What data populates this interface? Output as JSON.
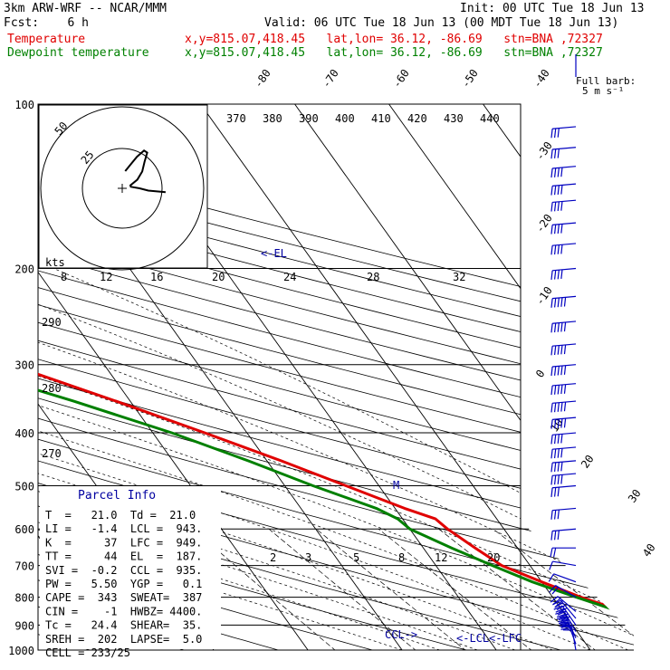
{
  "header": {
    "model": "3km ARW-WRF -- NCAR/MMM",
    "init": "Init: 00 UTC Tue 18 Jun 13",
    "fcst": "Fcst:    6 h",
    "valid": "Valid: 06 UTC Tue 18 Jun 13 (00 MDT Tue 18 Jun 13)",
    "temp_label": "Temperature",
    "dew_label": "Dewpoint temperature",
    "loc_info": "x,y=815.07,418.45   lat,lon= 36.12, -86.69   stn=BNA ,72327"
  },
  "wind_legend": {
    "line1": "Full barb:",
    "line2": "5 m s⁻¹"
  },
  "hodograph": {
    "units": "kts",
    "ring_labels": [
      "25",
      "50"
    ]
  },
  "labels": {
    "el": "<-EL",
    "ccl": "CCL->",
    "lcl": "<-LCL",
    "lfc": "<-LFC",
    "m": "M"
  },
  "parcel": {
    "title": "Parcel Info",
    "rows": [
      "T  =   21.0  Td =  21.0",
      "LI =   -1.4  LCL =  943.",
      "K  =     37  LFC =  949.",
      "TT =     44  EL  =  187.",
      "SVI =  -0.2  CCL =  935.",
      "PW =   5.50  YGP =   0.1",
      "CAPE =  343  SWEAT=  387",
      "CIN =    -1  HWBZ= 4400.",
      "Tc =   24.4  SHEAR=  35.",
      "SREH =  202  LAPSE=  5.0",
      "CELL = 233/25"
    ]
  },
  "chart_data": {
    "type": "line",
    "title": "",
    "pressure_ticks": [
      100,
      200,
      300,
      400,
      500,
      600,
      700,
      800,
      900,
      1000
    ],
    "isotherm_labels": [
      "-80",
      "-70",
      "-60",
      "-50",
      "-40",
      "-30",
      "-20",
      "-10",
      "0",
      "10",
      "20",
      "30",
      "40"
    ],
    "theta_labels": [
      "370",
      "380",
      "390",
      "400",
      "410",
      "420",
      "430",
      "440"
    ],
    "theta_left_labels": [
      "290",
      "280",
      "270"
    ],
    "thetae_labels": [
      "8",
      "12",
      "16",
      "20",
      "24",
      "28",
      "32"
    ],
    "mixing_ratio_labels": [
      "2",
      "3",
      "5",
      "8",
      "12",
      "20"
    ],
    "series": [
      {
        "name": "Temperature",
        "color": "#e00000",
        "points": [
          [
            1000,
            21
          ],
          [
            960,
            22
          ],
          [
            930,
            21.5
          ],
          [
            900,
            19.5
          ],
          [
            850,
            16.5
          ],
          [
            800,
            13
          ],
          [
            750,
            10
          ],
          [
            700,
            7
          ],
          [
            650,
            5.5
          ],
          [
            600,
            4
          ],
          [
            575,
            3.5
          ],
          [
            550,
            1
          ],
          [
            500,
            -3.5
          ],
          [
            450,
            -8.5
          ],
          [
            400,
            -14.5
          ],
          [
            350,
            -21.5
          ],
          [
            300,
            -30
          ],
          [
            250,
            -40
          ],
          [
            225,
            -46.5
          ],
          [
            200,
            -53.5
          ],
          [
            175,
            -60.5
          ],
          [
            160,
            -62.5
          ],
          [
            150,
            -62
          ],
          [
            135,
            -60
          ],
          [
            125,
            -59.5
          ],
          [
            115,
            -57.5
          ],
          [
            105,
            -57
          ],
          [
            100,
            -57
          ]
        ]
      },
      {
        "name": "Dewpoint temperature",
        "color": "#008000",
        "points": [
          [
            1000,
            20.5
          ],
          [
            960,
            21
          ],
          [
            930,
            20.5
          ],
          [
            900,
            18.5
          ],
          [
            850,
            16
          ],
          [
            800,
            12.5
          ],
          [
            750,
            9
          ],
          [
            700,
            6
          ],
          [
            650,
            3
          ],
          [
            600,
            0
          ],
          [
            575,
            -0.5
          ],
          [
            550,
            -2
          ],
          [
            500,
            -7
          ],
          [
            450,
            -12
          ],
          [
            400,
            -18
          ],
          [
            350,
            -26
          ],
          [
            300,
            -36
          ],
          [
            250,
            -50
          ],
          [
            225,
            -57
          ],
          [
            200,
            -65
          ],
          [
            175,
            -70
          ],
          [
            150,
            -76
          ],
          [
            125,
            -81
          ],
          [
            110,
            -83
          ],
          [
            100,
            -80
          ]
        ]
      }
    ],
    "wind_barbs": [
      {
        "p": 1000,
        "spd": 10,
        "dir": 190
      },
      {
        "p": 975,
        "spd": 15,
        "dir": 200
      },
      {
        "p": 950,
        "spd": 20,
        "dir": 205
      },
      {
        "p": 925,
        "spd": 25,
        "dir": 210
      },
      {
        "p": 900,
        "spd": 25,
        "dir": 215
      },
      {
        "p": 875,
        "spd": 20,
        "dir": 220
      },
      {
        "p": 850,
        "spd": 15,
        "dir": 230
      },
      {
        "p": 800,
        "spd": 10,
        "dir": 240
      },
      {
        "p": 750,
        "spd": 5,
        "dir": 250
      },
      {
        "p": 700,
        "spd": 5,
        "dir": 260
      },
      {
        "p": 650,
        "spd": 10,
        "dir": 270
      },
      {
        "p": 600,
        "spd": 15,
        "dir": 275
      },
      {
        "p": 550,
        "spd": 15,
        "dir": 275
      },
      {
        "p": 500,
        "spd": 15,
        "dir": 275
      },
      {
        "p": 475,
        "spd": 20,
        "dir": 275
      },
      {
        "p": 450,
        "spd": 20,
        "dir": 275
      },
      {
        "p": 425,
        "spd": 20,
        "dir": 275
      },
      {
        "p": 400,
        "spd": 20,
        "dir": 275
      },
      {
        "p": 375,
        "spd": 25,
        "dir": 275
      },
      {
        "p": 350,
        "spd": 25,
        "dir": 275
      },
      {
        "p": 325,
        "spd": 25,
        "dir": 275
      },
      {
        "p": 300,
        "spd": 25,
        "dir": 275
      },
      {
        "p": 275,
        "spd": 25,
        "dir": 275
      },
      {
        "p": 250,
        "spd": 25,
        "dir": 275
      },
      {
        "p": 225,
        "spd": 25,
        "dir": 275
      },
      {
        "p": 200,
        "spd": 20,
        "dir": 275
      },
      {
        "p": 180,
        "spd": 20,
        "dir": 275
      },
      {
        "p": 165,
        "spd": 20,
        "dir": 275
      },
      {
        "p": 150,
        "spd": 20,
        "dir": 275
      },
      {
        "p": 140,
        "spd": 20,
        "dir": 275
      },
      {
        "p": 130,
        "spd": 20,
        "dir": 275
      },
      {
        "p": 120,
        "spd": 15,
        "dir": 275
      },
      {
        "p": 110,
        "spd": 15,
        "dir": 275
      }
    ]
  }
}
